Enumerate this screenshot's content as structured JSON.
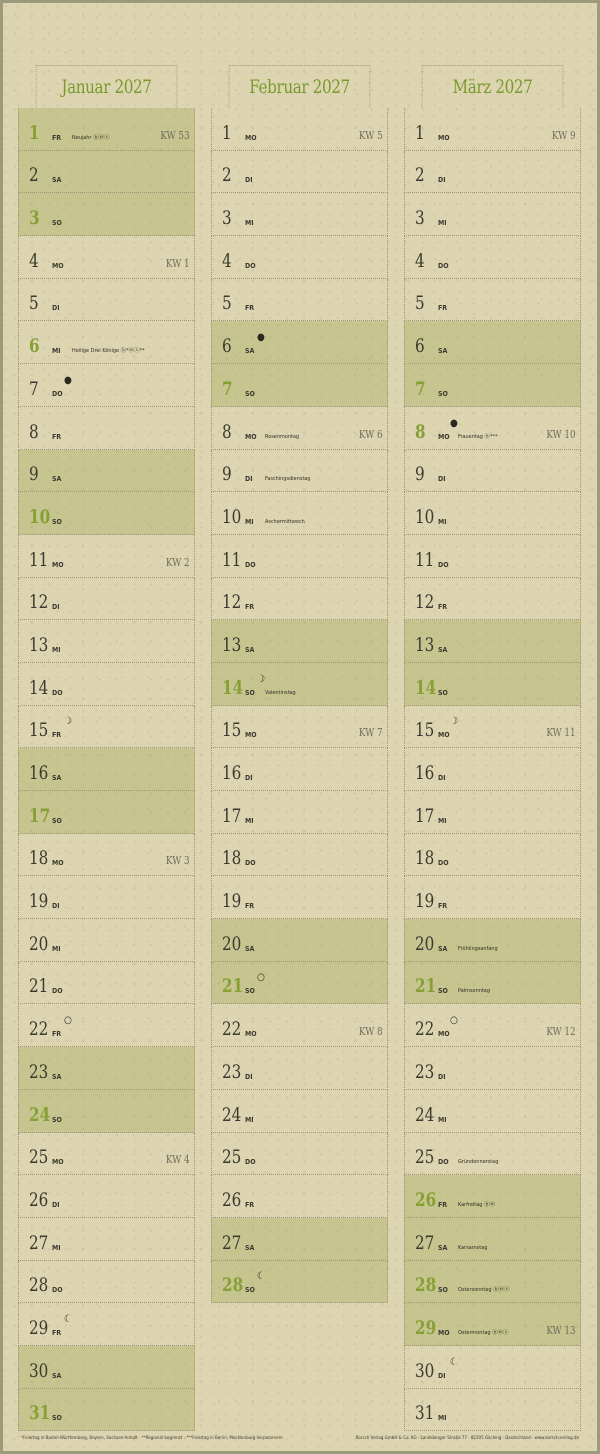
{
  "colors": {
    "accent": "#7a9a2e",
    "highlight": "#c9c995",
    "background": "#ddd5b1"
  },
  "months": [
    {
      "title": "Januar 2027",
      "days": [
        {
          "d": "1",
          "wd": "FR",
          "kw": "KW 53",
          "hol": "Neujahr ⓑⓦⓢ",
          "hl": true,
          "acc": true
        },
        {
          "d": "2",
          "wd": "SA",
          "hl": true
        },
        {
          "d": "3",
          "wd": "SO",
          "hl": true,
          "acc": true
        },
        {
          "d": "4",
          "wd": "MO",
          "kw": "KW 1"
        },
        {
          "d": "5",
          "wd": "DI"
        },
        {
          "d": "6",
          "wd": "MI",
          "hol": "Heilige Drei Könige ⓑ*ⓦⓢ**",
          "acc": true
        },
        {
          "d": "7",
          "wd": "DO",
          "moon": "●"
        },
        {
          "d": "8",
          "wd": "FR"
        },
        {
          "d": "9",
          "wd": "SA",
          "hl": true
        },
        {
          "d": "10",
          "wd": "SO",
          "hl": true,
          "acc": true
        },
        {
          "d": "11",
          "wd": "MO",
          "kw": "KW 2"
        },
        {
          "d": "12",
          "wd": "DI"
        },
        {
          "d": "13",
          "wd": "MI"
        },
        {
          "d": "14",
          "wd": "DO"
        },
        {
          "d": "15",
          "wd": "FR",
          "moon": "☽"
        },
        {
          "d": "16",
          "wd": "SA",
          "hl": true
        },
        {
          "d": "17",
          "wd": "SO",
          "hl": true,
          "acc": true
        },
        {
          "d": "18",
          "wd": "MO",
          "kw": "KW 3"
        },
        {
          "d": "19",
          "wd": "DI"
        },
        {
          "d": "20",
          "wd": "MI"
        },
        {
          "d": "21",
          "wd": "DO"
        },
        {
          "d": "22",
          "wd": "FR",
          "moon": "○"
        },
        {
          "d": "23",
          "wd": "SA",
          "hl": true
        },
        {
          "d": "24",
          "wd": "SO",
          "hl": true,
          "acc": true
        },
        {
          "d": "25",
          "wd": "MO",
          "kw": "KW 4"
        },
        {
          "d": "26",
          "wd": "DI"
        },
        {
          "d": "27",
          "wd": "MI"
        },
        {
          "d": "28",
          "wd": "DO"
        },
        {
          "d": "29",
          "wd": "FR",
          "moon": "☾"
        },
        {
          "d": "30",
          "wd": "SA",
          "hl": true
        },
        {
          "d": "31",
          "wd": "SO",
          "hl": true,
          "acc": true
        }
      ]
    },
    {
      "title": "Februar 2027",
      "days": [
        {
          "d": "1",
          "wd": "MO",
          "kw": "KW 5"
        },
        {
          "d": "2",
          "wd": "DI"
        },
        {
          "d": "3",
          "wd": "MI"
        },
        {
          "d": "4",
          "wd": "DO"
        },
        {
          "d": "5",
          "wd": "FR"
        },
        {
          "d": "6",
          "wd": "SA",
          "hl": true,
          "moon": "●"
        },
        {
          "d": "7",
          "wd": "SO",
          "hl": true,
          "acc": true
        },
        {
          "d": "8",
          "wd": "MO",
          "kw": "KW 6",
          "hol": "Rosenmontag"
        },
        {
          "d": "9",
          "wd": "DI",
          "hol": "Faschingsdienstag"
        },
        {
          "d": "10",
          "wd": "MI",
          "hol": "Aschermittwoch"
        },
        {
          "d": "11",
          "wd": "DO"
        },
        {
          "d": "12",
          "wd": "FR"
        },
        {
          "d": "13",
          "wd": "SA",
          "hl": true
        },
        {
          "d": "14",
          "wd": "SO",
          "hl": true,
          "acc": true,
          "moon": "☽",
          "hol": "Valentinstag"
        },
        {
          "d": "15",
          "wd": "MO",
          "kw": "KW 7"
        },
        {
          "d": "16",
          "wd": "DI"
        },
        {
          "d": "17",
          "wd": "MI"
        },
        {
          "d": "18",
          "wd": "DO"
        },
        {
          "d": "19",
          "wd": "FR"
        },
        {
          "d": "20",
          "wd": "SA",
          "hl": true
        },
        {
          "d": "21",
          "wd": "SO",
          "hl": true,
          "acc": true,
          "moon": "○"
        },
        {
          "d": "22",
          "wd": "MO",
          "kw": "KW 8"
        },
        {
          "d": "23",
          "wd": "DI"
        },
        {
          "d": "24",
          "wd": "MI"
        },
        {
          "d": "25",
          "wd": "DO"
        },
        {
          "d": "26",
          "wd": "FR"
        },
        {
          "d": "27",
          "wd": "SA",
          "hl": true
        },
        {
          "d": "28",
          "wd": "SO",
          "hl": true,
          "acc": true,
          "moon": "☾"
        }
      ]
    },
    {
      "title": "März 2027",
      "days": [
        {
          "d": "1",
          "wd": "MO",
          "kw": "KW 9"
        },
        {
          "d": "2",
          "wd": "DI"
        },
        {
          "d": "3",
          "wd": "MI"
        },
        {
          "d": "4",
          "wd": "DO"
        },
        {
          "d": "5",
          "wd": "FR"
        },
        {
          "d": "6",
          "wd": "SA",
          "hl": true
        },
        {
          "d": "7",
          "wd": "SO",
          "hl": true,
          "acc": true
        },
        {
          "d": "8",
          "wd": "MO",
          "kw": "KW 10",
          "moon": "●",
          "hol": "Frauentag ⓑ***",
          "acc": true
        },
        {
          "d": "9",
          "wd": "DI"
        },
        {
          "d": "10",
          "wd": "MI"
        },
        {
          "d": "11",
          "wd": "DO"
        },
        {
          "d": "12",
          "wd": "FR"
        },
        {
          "d": "13",
          "wd": "SA",
          "hl": true
        },
        {
          "d": "14",
          "wd": "SO",
          "hl": true,
          "acc": true
        },
        {
          "d": "15",
          "wd": "MO",
          "kw": "KW 11",
          "moon": "☽"
        },
        {
          "d": "16",
          "wd": "DI"
        },
        {
          "d": "17",
          "wd": "MI"
        },
        {
          "d": "18",
          "wd": "DO"
        },
        {
          "d": "19",
          "wd": "FR"
        },
        {
          "d": "20",
          "wd": "SA",
          "hl": true,
          "hol": "Frühlingsanfang"
        },
        {
          "d": "21",
          "wd": "SO",
          "hl": true,
          "acc": true,
          "hol": "Palmsonntag"
        },
        {
          "d": "22",
          "wd": "MO",
          "kw": "KW 12",
          "moon": "○"
        },
        {
          "d": "23",
          "wd": "DI"
        },
        {
          "d": "24",
          "wd": "MI"
        },
        {
          "d": "25",
          "wd": "DO",
          "hol": "Gründonnerstag"
        },
        {
          "d": "26",
          "wd": "FR",
          "hl": true,
          "acc": true,
          "hol": "Karfreitag ⓑⓦ"
        },
        {
          "d": "27",
          "wd": "SA",
          "hl": true,
          "hol": "Karsamstag"
        },
        {
          "d": "28",
          "wd": "SO",
          "hl": true,
          "acc": true,
          "hol": "Ostersonntag ⓑⓦⓢ"
        },
        {
          "d": "29",
          "wd": "MO",
          "kw": "KW 13",
          "hl": true,
          "acc": true,
          "hol": "Ostermontag ⓑⓦⓢ"
        },
        {
          "d": "30",
          "wd": "DI",
          "moon": "☾"
        },
        {
          "d": "31",
          "wd": "MI"
        }
      ]
    }
  ],
  "footer": {
    "notes": "*Feiertag in Baden-Württemberg, Bayern, Sachsen-Anhalt  · **Regional begrenzt  · ***Feiertag in Berlin, Mecklenburg-Vorpommern",
    "publisher": "Korsch Verlag GmbH & Co. KG · Landsberger Straße 77 · 82205 Gilching · Deutschland · www.korsch-verlag.de"
  }
}
